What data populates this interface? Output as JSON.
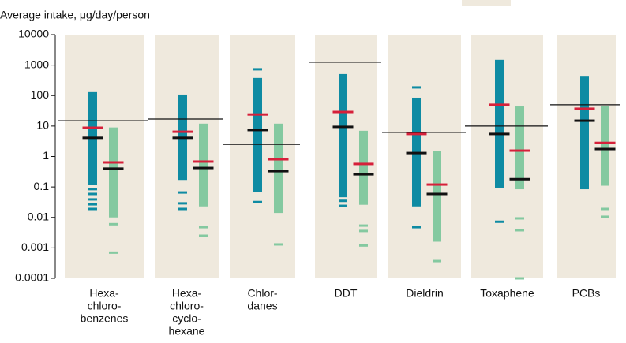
{
  "chart_data": {
    "type": "range",
    "title": "Average intake, μg/day/person",
    "yscale": "log",
    "ylim": [
      0.0001,
      10000
    ],
    "yticks": [
      0.0001,
      0.001,
      0.01,
      0.1,
      1,
      10,
      100,
      1000,
      10000
    ],
    "bar_colors": [
      "#0e8ba3",
      "#84c9a0"
    ],
    "mean_color": "#d6203a",
    "median_color": "#111111",
    "panel_color": "#efe9dd",
    "groups": [
      {
        "label": [
          "Hexa-",
          "chloro-",
          "benzenes"
        ],
        "reference": 15,
        "bars": [
          {
            "range": [
              0.12,
              130
            ],
            "mean": 8.8,
            "median": 4.1,
            "points": [
              0.085,
              0.059,
              0.039,
              0.027,
              0.019
            ]
          },
          {
            "range": [
              0.01,
              9
            ],
            "mean": 0.64,
            "median": 0.4,
            "points": [
              0.006,
              0.0007
            ]
          }
        ]
      },
      {
        "label": [
          "Hexa-",
          "chloro-",
          "cyclo-",
          "hexane"
        ],
        "reference": 17,
        "bars": [
          {
            "range": [
              0.17,
              108
            ],
            "mean": 6.5,
            "median": 4.1,
            "points": [
              0.066,
              0.029,
              0.019
            ]
          },
          {
            "range": [
              0.023,
              12
            ],
            "mean": 0.68,
            "median": 0.42,
            "points": [
              0.0048,
              0.0025
            ]
          }
        ]
      },
      {
        "label": [
          "Chlor-",
          "danes"
        ],
        "reference": 2.5,
        "bars": [
          {
            "range": [
              0.07,
              380
            ],
            "mean": 24,
            "median": 7.4,
            "points": [
              730,
              0.032
            ]
          },
          {
            "range": [
              0.014,
              12
            ],
            "mean": 0.81,
            "median": 0.33,
            "points": [
              0.0013
            ]
          }
        ]
      },
      {
        "label": [
          "DDT"
        ],
        "reference": 1250,
        "bars": [
          {
            "range": [
              0.046,
              510
            ],
            "mean": 29,
            "median": 9.4,
            "points": [
              0.035,
              0.024
            ]
          },
          {
            "range": [
              0.026,
              7
            ],
            "mean": 0.57,
            "median": 0.26,
            "points": [
              0.0054,
              0.0036,
              0.0012
            ]
          }
        ]
      },
      {
        "label": [
          "Dieldrin"
        ],
        "reference": 6.2,
        "bars": [
          {
            "range": [
              0.023,
              85
            ],
            "mean": 5.5,
            "median": 1.3,
            "points": [
              185,
              0.0048
            ]
          },
          {
            "range": [
              0.0016,
              1.5
            ],
            "mean": 0.12,
            "median": 0.059,
            "points": [
              0.00037
            ]
          }
        ]
      },
      {
        "label": [
          "Toxaphene"
        ],
        "reference": 10,
        "bars": [
          {
            "range": [
              0.095,
              1500
            ],
            "mean": 50,
            "median": 5.5,
            "points": [
              0.0072
            ]
          },
          {
            "range": [
              0.084,
              44
            ],
            "mean": 1.56,
            "median": 0.18,
            "points": [
              0.0093,
              0.0038,
              0.0001
            ]
          }
        ]
      },
      {
        "label": [
          "PCBs"
        ],
        "reference": 50,
        "bars": [
          {
            "range": [
              0.084,
              420
            ],
            "mean": 37,
            "median": 15,
            "points": []
          },
          {
            "range": [
              0.11,
              44
            ],
            "mean": 2.8,
            "median": 1.76,
            "points": [
              0.019,
              0.0105
            ]
          }
        ]
      }
    ]
  }
}
